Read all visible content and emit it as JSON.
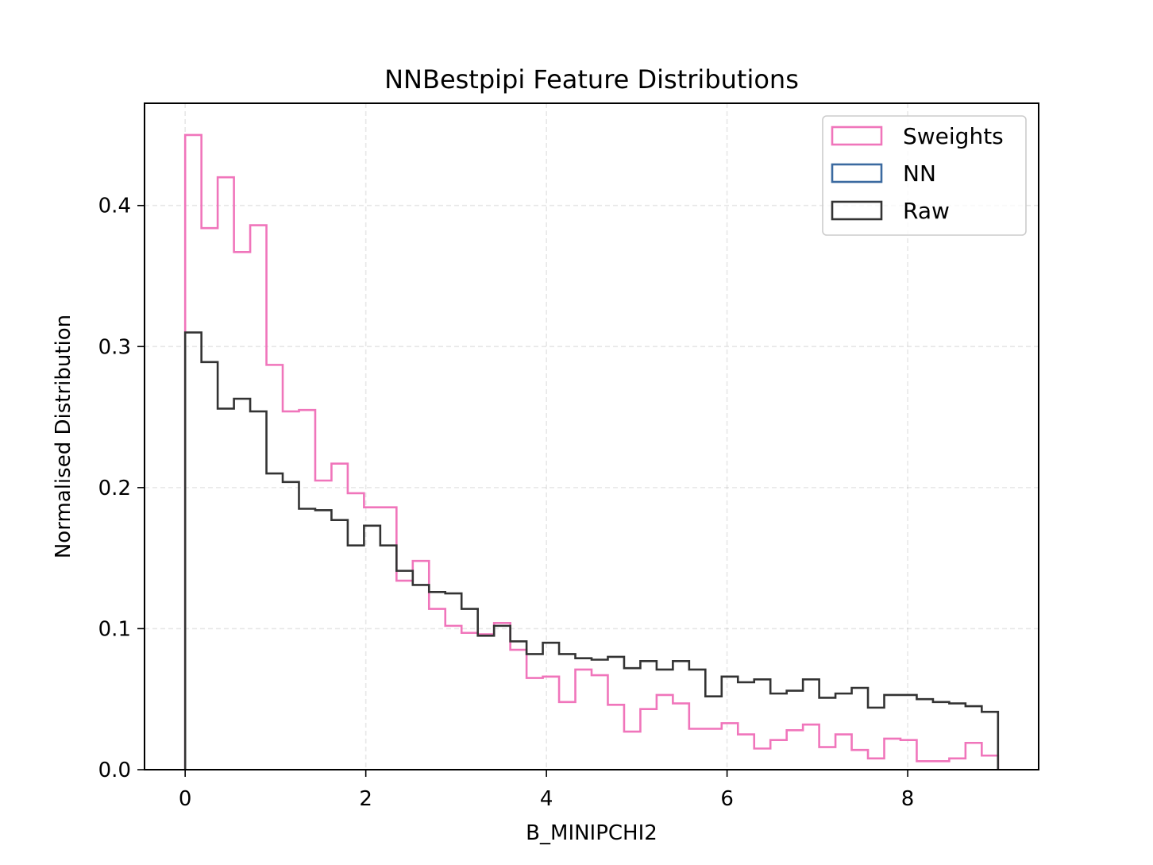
{
  "chart_data": {
    "type": "histogram",
    "title": "NNBestpipi Feature Distributions",
    "xlabel": "B_MINIPCHI2",
    "ylabel": "Normalised Distribution",
    "xlim": [
      -0.45,
      9.45
    ],
    "ylim": [
      0.0,
      0.4725
    ],
    "xticks": [
      0,
      2,
      4,
      6,
      8
    ],
    "xtick_labels": [
      "0",
      "2",
      "4",
      "6",
      "8"
    ],
    "yticks": [
      0.0,
      0.1,
      0.2,
      0.3,
      0.4
    ],
    "ytick_labels": [
      "0.0",
      "0.1",
      "0.2",
      "0.3",
      "0.4"
    ],
    "grid": true,
    "legend_position": "top-right",
    "bin_edges": [
      0,
      0.18,
      0.36,
      0.54,
      0.72,
      0.9,
      1.08,
      1.26,
      1.44,
      1.62,
      1.8,
      1.98,
      2.16,
      2.34,
      2.52,
      2.7,
      2.88,
      3.06,
      3.24,
      3.42,
      3.6,
      3.78,
      3.96,
      4.14,
      4.32,
      4.5,
      4.68,
      4.86,
      5.04,
      5.22,
      5.4,
      5.58,
      5.76,
      5.94,
      6.12,
      6.3,
      6.48,
      6.66,
      6.84,
      7.02,
      7.2,
      7.38,
      7.56,
      7.74,
      7.92,
      8.1,
      8.28,
      8.46,
      8.64,
      8.82,
      9.0
    ],
    "series": [
      {
        "name": "Sweights",
        "color": "#f075bb",
        "values": [
          0.45,
          0.384,
          0.42,
          0.367,
          0.386,
          0.287,
          0.254,
          0.255,
          0.205,
          0.217,
          0.196,
          0.186,
          0.186,
          0.134,
          0.148,
          0.114,
          0.102,
          0.097,
          0.096,
          0.104,
          0.085,
          0.065,
          0.066,
          0.048,
          0.071,
          0.067,
          0.046,
          0.027,
          0.043,
          0.053,
          0.047,
          0.029,
          0.029,
          0.033,
          0.025,
          0.015,
          0.021,
          0.028,
          0.032,
          0.016,
          0.025,
          0.014,
          0.008,
          0.022,
          0.021,
          0.006,
          0.006,
          0.008,
          0.019,
          0.01
        ]
      },
      {
        "name": "NN",
        "color": "#3b6aa0",
        "values": []
      },
      {
        "name": "Raw",
        "color": "#333333",
        "values": [
          0.31,
          0.289,
          0.256,
          0.263,
          0.254,
          0.21,
          0.204,
          0.185,
          0.184,
          0.177,
          0.159,
          0.173,
          0.159,
          0.141,
          0.131,
          0.126,
          0.125,
          0.114,
          0.095,
          0.102,
          0.091,
          0.082,
          0.09,
          0.082,
          0.079,
          0.078,
          0.08,
          0.072,
          0.077,
          0.071,
          0.077,
          0.071,
          0.052,
          0.066,
          0.062,
          0.064,
          0.054,
          0.056,
          0.064,
          0.051,
          0.054,
          0.058,
          0.044,
          0.053,
          0.053,
          0.05,
          0.048,
          0.047,
          0.045,
          0.041
        ]
      }
    ]
  }
}
